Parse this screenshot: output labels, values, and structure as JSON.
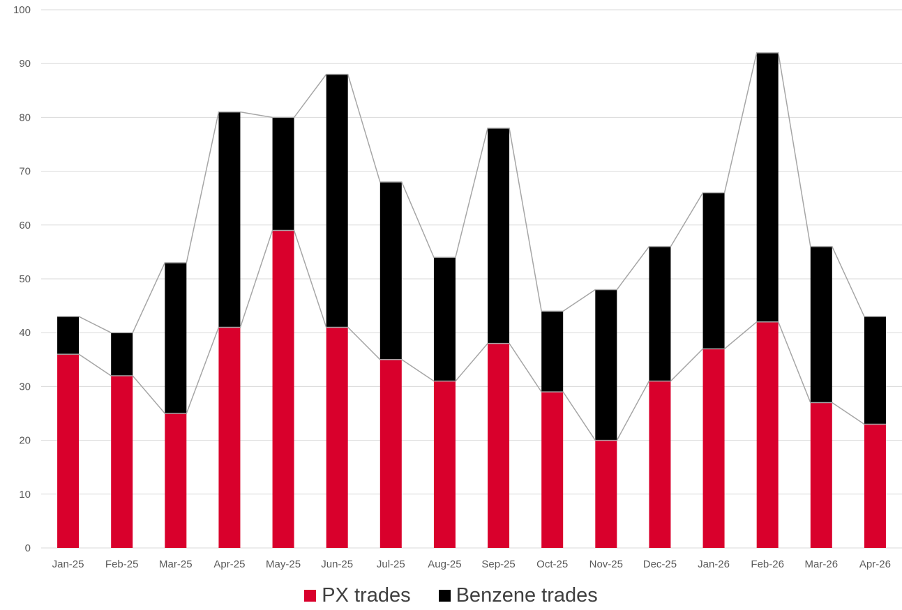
{
  "chart_data": {
    "type": "bar",
    "stacked": true,
    "categories": [
      "Jan-25",
      "Feb-25",
      "Mar-25",
      "Apr-25",
      "May-25",
      "Jun-25",
      "Jul-25",
      "Aug-25",
      "Sep-25",
      "Oct-25",
      "Nov-25",
      "Dec-25",
      "Jan-26",
      "Feb-26",
      "Mar-26",
      "Apr-26"
    ],
    "series": [
      {
        "name": "PX trades",
        "color": "#d9002c",
        "values": [
          36,
          32,
          25,
          41,
          59,
          41,
          35,
          31,
          38,
          29,
          20,
          31,
          37,
          42,
          27,
          23
        ]
      },
      {
        "name": "Benzene trades",
        "color": "#000000",
        "values": [
          7,
          8,
          28,
          40,
          21,
          47,
          33,
          23,
          40,
          15,
          28,
          25,
          29,
          50,
          29,
          20
        ]
      }
    ],
    "series_lines": {
      "color": "#a6a6a6"
    },
    "ylim": [
      0,
      100
    ],
    "yticks": [
      0,
      10,
      20,
      30,
      40,
      50,
      60,
      70,
      80,
      90,
      100
    ],
    "grid": true,
    "gridColor": "#d9d9d9",
    "legend_position": "bottom",
    "title": "",
    "xlabel": "",
    "ylabel": ""
  }
}
